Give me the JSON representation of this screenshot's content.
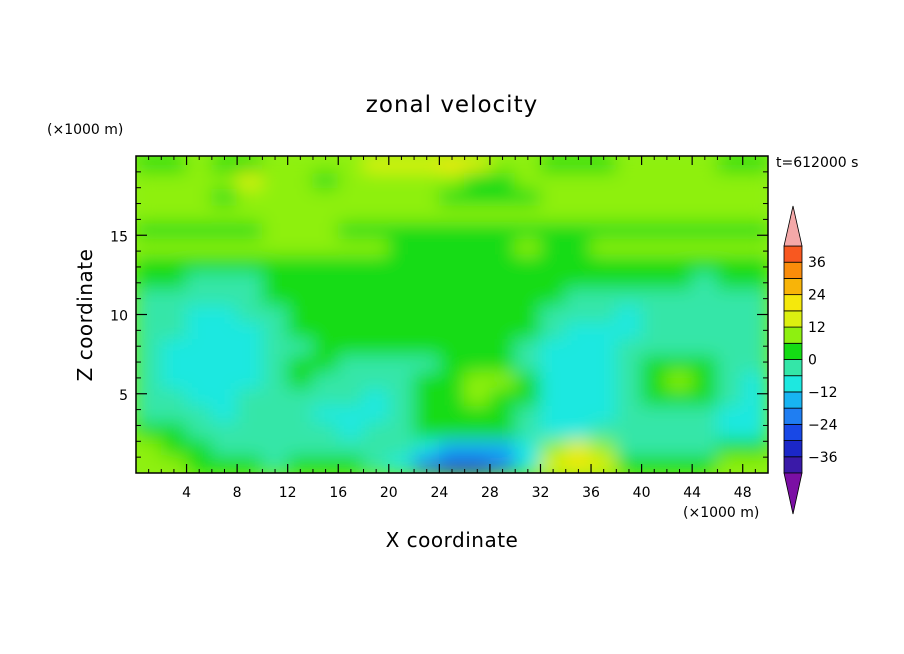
{
  "chart_data": {
    "type": "heatmap",
    "title": "zonal velocity",
    "xlabel": "X coordinate",
    "ylabel": "Z coordinate",
    "x_unit": "(×1000 m)",
    "y_unit": "(×1000 m)",
    "time_label": "t=612000 s",
    "xlim": [
      0,
      50
    ],
    "ylim": [
      0,
      20
    ],
    "x_ticks": [
      4,
      8,
      12,
      16,
      20,
      24,
      28,
      32,
      36,
      40,
      44,
      48
    ],
    "y_ticks": [
      5,
      10,
      15
    ],
    "colorbar": {
      "levels": [
        -42,
        -36,
        -30,
        -24,
        -18,
        -12,
        -6,
        0,
        6,
        12,
        18,
        24,
        30,
        36,
        42
      ],
      "labels": [
        36,
        24,
        12,
        0,
        -12,
        -24,
        -36
      ],
      "colors": [
        "#7b0fa4",
        "#3a1aa8",
        "#1b27c8",
        "#1848e6",
        "#1f7ef2",
        "#18b4f2",
        "#1de8e0",
        "#34e6a8",
        "#14dc14",
        "#8ef010",
        "#dcf010",
        "#f5e80c",
        "#f8b408",
        "#fa8c0a",
        "#f85820",
        "#f02a1c",
        "#f4a8a8"
      ],
      "overflow_top_color": "#f4a8a8",
      "overflow_bottom_color": "#7b0fa4"
    },
    "field": {
      "rows_top_to_bottom": [
        [
          8,
          8,
          9,
          8,
          8,
          9,
          9,
          9,
          9,
          10,
          10,
          10,
          11,
          10,
          9,
          9,
          8,
          8,
          8,
          9,
          9,
          9,
          9,
          8,
          8
        ],
        [
          9,
          9,
          9,
          9,
          10,
          9,
          9,
          8,
          9,
          9,
          9,
          9,
          9,
          8,
          8,
          9,
          9,
          9,
          9,
          9,
          9,
          9,
          9,
          9,
          9
        ],
        [
          9,
          9,
          9,
          8,
          9,
          9,
          9,
          9,
          9,
          9,
          9,
          9,
          8,
          8,
          8,
          8,
          9,
          9,
          9,
          9,
          9,
          9,
          9,
          9,
          9
        ],
        [
          9,
          9,
          9,
          9,
          9,
          9,
          9,
          9,
          9,
          9,
          9,
          9,
          9,
          9,
          9,
          9,
          9,
          9,
          9,
          9,
          9,
          9,
          9,
          9,
          9
        ],
        [
          8,
          8,
          8,
          8,
          8,
          9,
          9,
          9,
          8,
          8,
          8,
          8,
          8,
          8,
          8,
          8,
          8,
          8,
          8,
          8,
          8,
          8,
          8,
          8,
          8
        ],
        [
          9,
          9,
          9,
          9,
          9,
          9,
          9,
          9,
          9,
          9,
          8,
          8,
          8,
          8,
          8,
          9,
          8,
          8,
          9,
          9,
          9,
          9,
          9,
          9,
          9
        ],
        [
          8,
          8,
          8,
          8,
          8,
          8,
          8,
          8,
          8,
          8,
          8,
          8,
          8,
          8,
          8,
          8,
          8,
          8,
          8,
          8,
          8,
          8,
          8,
          8,
          8
        ],
        [
          8,
          8,
          7,
          7,
          7,
          8,
          8,
          8,
          8,
          8,
          8,
          8,
          8,
          8,
          8,
          8,
          8,
          8,
          8,
          8,
          8,
          8,
          7,
          8,
          8
        ],
        [
          7,
          7,
          7,
          7,
          7,
          8,
          8,
          8,
          8,
          8,
          8,
          8,
          8,
          8,
          8,
          8,
          8,
          7,
          7,
          7,
          7,
          7,
          7,
          7,
          7
        ],
        [
          7,
          7,
          6,
          6,
          7,
          7,
          8,
          8,
          8,
          8,
          8,
          8,
          8,
          8,
          8,
          8,
          7,
          7,
          7,
          6,
          7,
          7,
          7,
          7,
          7
        ],
        [
          7,
          7,
          6,
          6,
          6,
          7,
          8,
          8,
          8,
          8,
          8,
          8,
          8,
          8,
          8,
          8,
          7,
          6,
          6,
          6,
          7,
          7,
          7,
          7,
          7
        ],
        [
          7,
          6,
          6,
          6,
          6,
          7,
          7,
          8,
          8,
          8,
          8,
          8,
          8,
          8,
          8,
          7,
          6,
          6,
          6,
          7,
          7,
          7,
          7,
          7,
          7
        ],
        [
          7,
          6,
          6,
          6,
          6,
          7,
          8,
          8,
          7,
          7,
          7,
          7,
          8,
          8,
          8,
          7,
          6,
          6,
          6,
          7,
          8,
          8,
          8,
          7,
          7
        ],
        [
          7,
          6,
          6,
          6,
          6,
          7,
          8,
          7,
          7,
          7,
          7,
          8,
          8,
          9,
          9,
          8,
          6,
          6,
          6,
          7,
          8,
          9,
          8,
          7,
          6
        ],
        [
          7,
          7,
          6,
          6,
          7,
          7,
          7,
          7,
          7,
          6,
          7,
          8,
          8,
          9,
          8,
          8,
          6,
          6,
          6,
          7,
          8,
          8,
          8,
          7,
          6
        ],
        [
          7,
          7,
          7,
          6,
          7,
          7,
          7,
          6,
          6,
          6,
          7,
          8,
          8,
          8,
          8,
          7,
          6,
          6,
          6,
          7,
          7,
          7,
          7,
          6,
          6
        ],
        [
          8,
          8,
          7,
          7,
          7,
          7,
          7,
          7,
          6,
          7,
          7,
          8,
          8,
          8,
          8,
          7,
          6,
          6,
          7,
          7,
          7,
          7,
          7,
          6,
          6
        ],
        [
          9,
          8,
          8,
          7,
          7,
          7,
          7,
          7,
          7,
          7,
          7,
          6,
          5,
          5,
          5,
          6,
          9,
          10,
          9,
          7,
          7,
          7,
          7,
          8,
          8
        ],
        [
          9,
          9,
          8,
          8,
          8,
          7,
          8,
          8,
          8,
          7,
          6,
          4,
          3,
          3,
          4,
          6,
          10,
          11,
          10,
          8,
          8,
          8,
          8,
          9,
          9
        ]
      ]
    }
  }
}
